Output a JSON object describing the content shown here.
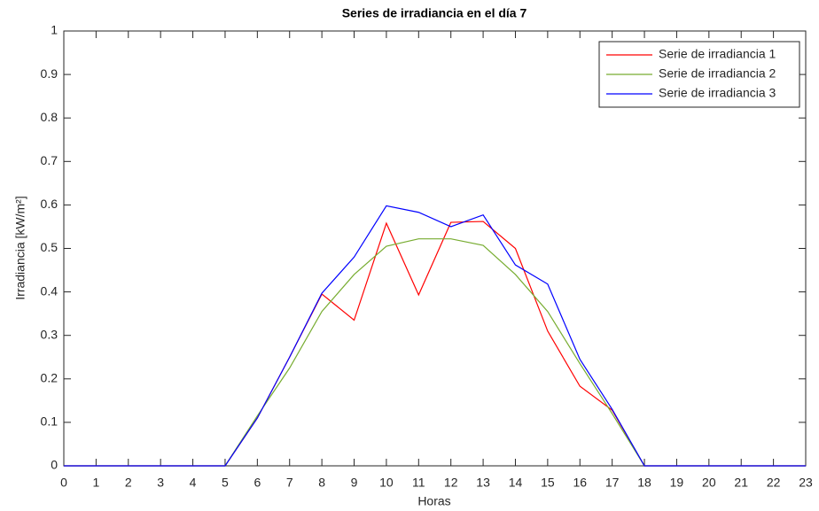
{
  "chart_data": {
    "type": "line",
    "title": "Series de irradiancia en el día 7",
    "xlabel": "Horas",
    "ylabel": "Irradiancia [kW/m²]",
    "x": [
      0,
      1,
      2,
      3,
      4,
      5,
      6,
      7,
      8,
      9,
      10,
      11,
      12,
      13,
      14,
      15,
      16,
      17,
      18,
      19,
      20,
      21,
      22,
      23
    ],
    "series": [
      {
        "name": "Serie de irradiancia 1",
        "color": "#ff0000",
        "values": [
          0,
          0,
          0,
          0,
          0,
          0,
          0.11,
          0.25,
          0.395,
          0.335,
          0.558,
          0.393,
          0.56,
          0.562,
          0.5,
          0.31,
          0.183,
          0.128,
          0,
          0,
          0,
          0,
          0,
          0
        ]
      },
      {
        "name": "Serie de irradiancia 2",
        "color": "#77ac30",
        "values": [
          0,
          0,
          0,
          0,
          0,
          0,
          0.115,
          0.225,
          0.355,
          0.44,
          0.505,
          0.522,
          0.522,
          0.507,
          0.44,
          0.355,
          0.235,
          0.12,
          0,
          0,
          0,
          0,
          0,
          0
        ]
      },
      {
        "name": "Serie de irradiancia 3",
        "color": "#0000ff",
        "values": [
          0,
          0,
          0,
          0,
          0,
          0,
          0.11,
          0.25,
          0.397,
          0.48,
          0.598,
          0.583,
          0.55,
          0.577,
          0.462,
          0.418,
          0.245,
          0.13,
          0,
          0,
          0,
          0,
          0,
          0
        ]
      }
    ],
    "xlim": [
      0,
      23
    ],
    "xticks": [
      0,
      1,
      2,
      3,
      4,
      5,
      6,
      7,
      8,
      9,
      10,
      11,
      12,
      13,
      14,
      15,
      16,
      17,
      18,
      19,
      20,
      21,
      22,
      23
    ],
    "ylim": [
      0,
      1
    ],
    "yticks": [
      0,
      0.1,
      0.2,
      0.3,
      0.4,
      0.5,
      0.6,
      0.7,
      0.8,
      0.9,
      1
    ],
    "grid": false,
    "legend": "top-right"
  }
}
